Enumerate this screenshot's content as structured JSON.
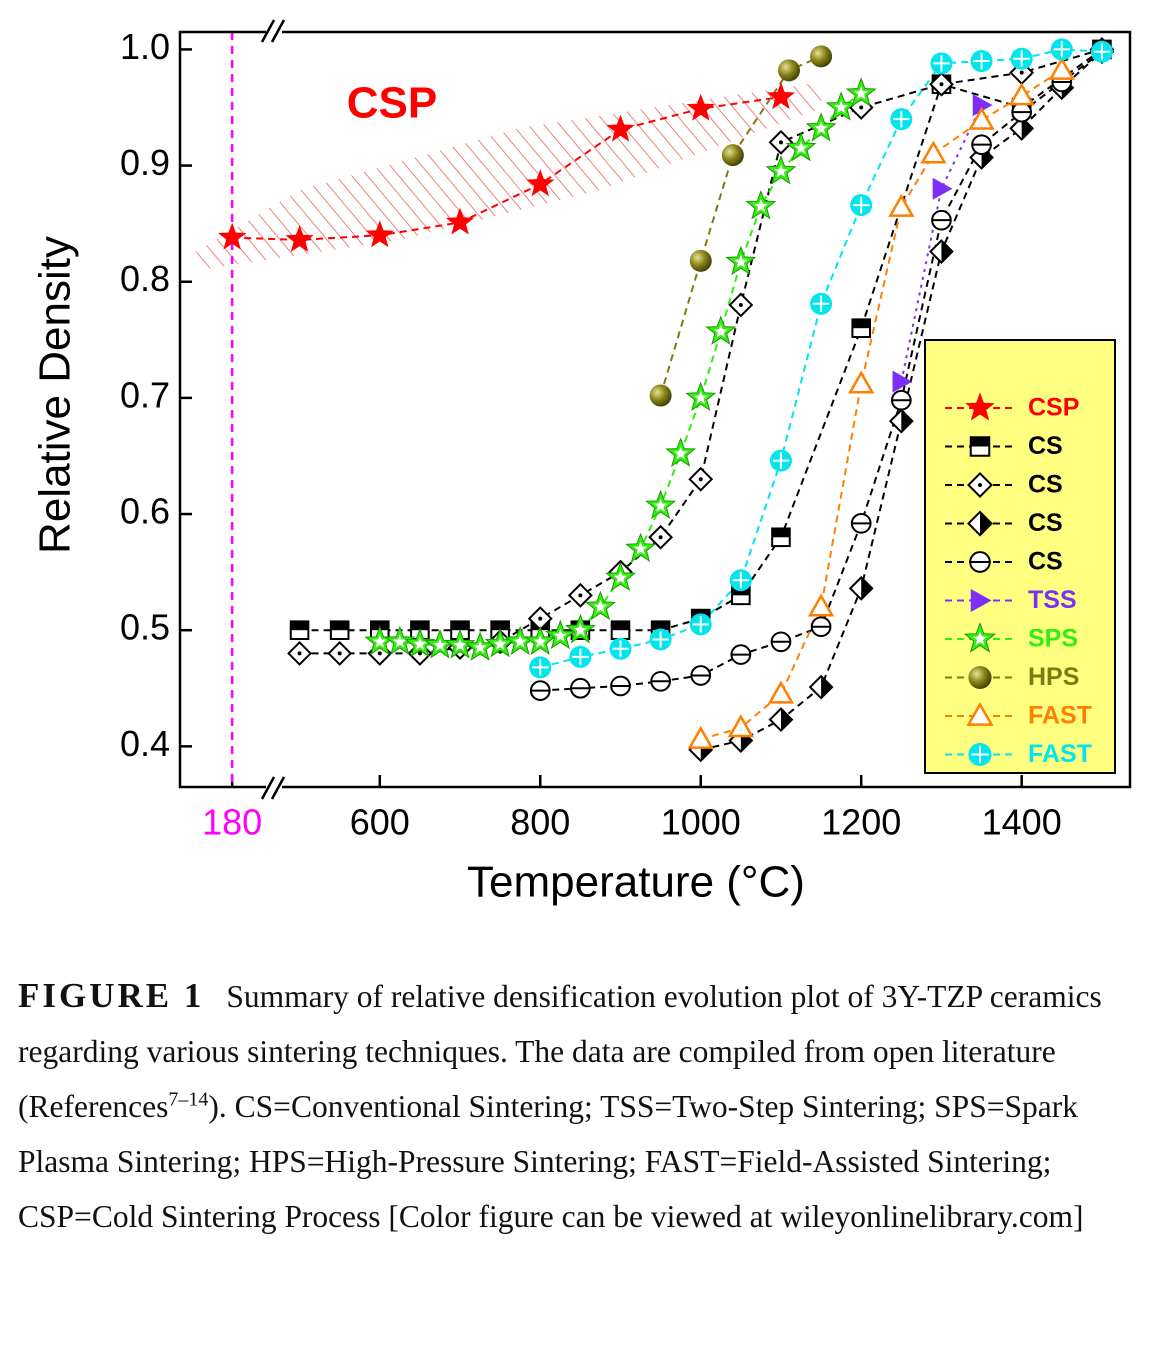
{
  "chart_data": {
    "type": "line",
    "ylabel": "Relative Density",
    "xlabel": "Temperature (°C)",
    "annotation": "CSP",
    "xsegments": [
      {
        "xlim": [
          115,
          233
        ]
      },
      {
        "xlim": [
          469,
          1535
        ]
      }
    ],
    "ylim": [
      0.365,
      1.015
    ],
    "yticks": [
      0.4,
      0.5,
      0.6,
      0.7,
      0.8,
      0.9,
      {
        "value": 1,
        "label": "1.0"
      }
    ],
    "xticks": [
      180,
      600,
      800,
      1000,
      1200,
      1400
    ],
    "vline": {
      "x": 180,
      "color": "#ff00ff"
    },
    "legend": "lower right",
    "series": [
      {
        "name": "CSP",
        "color": "#ff0000",
        "marker": "star",
        "x": [
          180,
          500,
          600,
          700,
          800,
          900,
          1000,
          1100
        ],
        "values": [
          0.838,
          0.836,
          0.84,
          0.851,
          0.884,
          0.931,
          0.949,
          0.959
        ]
      },
      {
        "name": "CS",
        "color": "#000000",
        "marker": "square-half",
        "x": [
          500,
          550,
          600,
          650,
          700,
          750,
          800,
          850,
          900,
          950,
          1000,
          1050,
          1100,
          1200,
          1300,
          1400,
          1500
        ],
        "values": [
          0.5,
          0.5,
          0.5,
          0.5,
          0.5,
          0.5,
          0.5,
          0.5,
          0.5,
          0.5,
          0.51,
          0.53,
          0.58,
          0.76,
          0.97,
          0.95,
          1.0
        ]
      },
      {
        "name": "CS",
        "color": "#000000",
        "marker": "diamond-dot",
        "x": [
          500,
          550,
          600,
          650,
          700,
          750,
          800,
          850,
          900,
          950,
          1000,
          1050,
          1100,
          1200,
          1300,
          1400,
          1500
        ],
        "values": [
          0.48,
          0.48,
          0.48,
          0.48,
          0.485,
          0.49,
          0.51,
          0.53,
          0.55,
          0.58,
          0.63,
          0.78,
          0.92,
          0.95,
          0.97,
          0.98,
          1.0
        ]
      },
      {
        "name": "CS",
        "color": "#000000",
        "marker": "diamond-half",
        "x": [
          1000,
          1050,
          1100,
          1150,
          1200,
          1250,
          1300,
          1350,
          1400,
          1450,
          1500
        ],
        "values": [
          0.397,
          0.405,
          0.423,
          0.451,
          0.536,
          0.68,
          0.826,
          0.907,
          0.932,
          0.967,
          0.998
        ]
      },
      {
        "name": "CS",
        "color": "#000000",
        "marker": "circle-bar",
        "x": [
          800,
          850,
          900,
          950,
          1000,
          1050,
          1100,
          1150,
          1200,
          1250,
          1300,
          1350,
          1400,
          1450,
          1500
        ],
        "values": [
          0.448,
          0.45,
          0.452,
          0.456,
          0.461,
          0.479,
          0.49,
          0.503,
          0.592,
          0.698,
          0.853,
          0.918,
          0.946,
          0.972,
          0.998
        ]
      },
      {
        "name": "TSS",
        "color": "#7b2ff7",
        "marker": "triangle-right",
        "x": [
          1250,
          1300,
          1350
        ],
        "values": [
          0.714,
          0.88,
          0.952
        ]
      },
      {
        "name": "SPS",
        "color": "#33ee11",
        "marker": "star-open",
        "x": [
          600,
          625,
          650,
          675,
          700,
          725,
          750,
          775,
          800,
          825,
          850,
          875,
          900,
          925,
          950,
          975,
          1000,
          1025,
          1050,
          1075,
          1100,
          1125,
          1150,
          1175,
          1200
        ],
        "values": [
          0.49,
          0.49,
          0.488,
          0.487,
          0.487,
          0.485,
          0.488,
          0.49,
          0.49,
          0.495,
          0.5,
          0.52,
          0.545,
          0.57,
          0.607,
          0.652,
          0.7,
          0.757,
          0.817,
          0.865,
          0.895,
          0.915,
          0.932,
          0.95,
          0.962
        ]
      },
      {
        "name": "HPS",
        "color": "#7d7a12",
        "marker": "ball",
        "x": [
          950,
          1000,
          1040,
          1110,
          1150
        ],
        "values": [
          0.702,
          0.818,
          0.909,
          0.982,
          0.994
        ]
      },
      {
        "name": "FAST",
        "color": "#ff7f00",
        "marker": "triangle-open",
        "x": [
          1000,
          1050,
          1100,
          1150,
          1200,
          1250,
          1290,
          1350,
          1400,
          1450
        ],
        "values": [
          0.406,
          0.416,
          0.445,
          0.52,
          0.712,
          0.864,
          0.91,
          0.939,
          0.96,
          0.982
        ]
      },
      {
        "name": "FAST",
        "color": "#00e5ee",
        "marker": "circle-plus",
        "x": [
          800,
          850,
          900,
          950,
          1000,
          1050,
          1100,
          1150,
          1200,
          1250,
          1300,
          1350,
          1400,
          1450,
          1500
        ],
        "values": [
          0.468,
          0.477,
          0.484,
          0.492,
          0.505,
          0.543,
          0.646,
          0.781,
          0.866,
          0.94,
          0.988,
          0.99,
          0.992,
          1.0,
          0.998
        ]
      }
    ]
  },
  "caption": {
    "label": "FIGURE 1",
    "text_before": "Summary of relative densification evolution plot of 3Y-TZP ceramics regarding various sintering techniques. The data are compiled from open literature (References",
    "superscript": "7–14",
    "text_after": "). CS=Conventional Sintering; TSS=Two-Step Sintering; SPS=Spark Plasma Sintering; HPS=High-Pressure Sintering; FAST=Field-Assisted Sintering; CSP=Cold Sintering Process [Color figure can be viewed at wileyonlinelibrary.com]"
  }
}
